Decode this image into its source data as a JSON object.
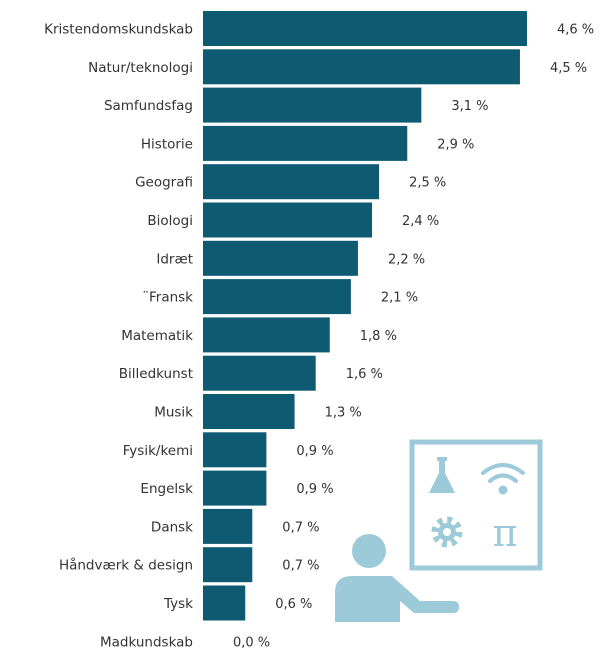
{
  "chart_data": {
    "type": "bar",
    "orientation": "horizontal",
    "categories": [
      "Kristendomskundskab",
      "Natur/teknologi",
      "Samfundsfag",
      "Historie",
      "Geografi",
      "Biologi",
      "Idræt",
      "¨Fransk",
      "Matematik",
      "Billedkunst",
      "Musik",
      "Fysik/kemi",
      "Engelsk",
      "Dansk",
      "Håndværk & design",
      "Tysk",
      "Madkundskab"
    ],
    "values": [
      4.6,
      4.5,
      3.1,
      2.9,
      2.5,
      2.4,
      2.2,
      2.1,
      1.8,
      1.6,
      1.3,
      0.9,
      0.9,
      0.7,
      0.7,
      0.6,
      0.0
    ],
    "value_labels": [
      "4,6 %",
      "4,5 %",
      "3,1 %",
      "2,9 %",
      "2,5 %",
      "2,4 %",
      "2,2 %",
      "2,1 %",
      "1,8 %",
      "1,6 %",
      "1,3 %",
      "0,9 %",
      "0,9 %",
      "0,7 %",
      "0,7 %",
      "0,6 %",
      "0,0 %"
    ],
    "xlim": [
      0,
      4.6
    ],
    "grid": false,
    "legend": "none",
    "bar_color": "#0e5a72"
  },
  "illustration": {
    "icon": "teacher-at-board-icon",
    "board_icons": [
      "flask-icon",
      "wifi-icon",
      "gear-icon",
      "pi-icon"
    ],
    "color": "#9ccad8"
  }
}
